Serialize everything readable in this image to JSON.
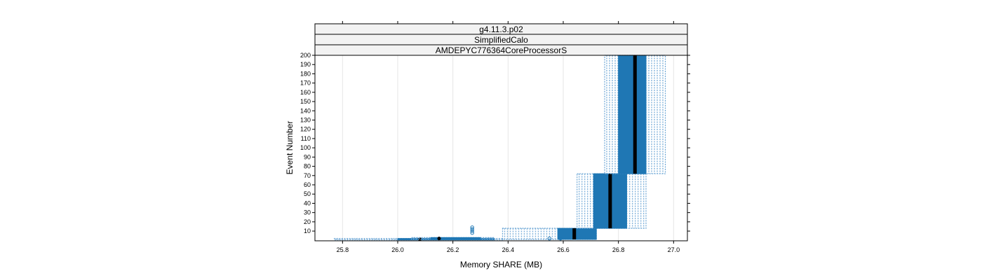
{
  "chart_data": {
    "type": "boxplot",
    "strips": [
      "g4.11.3.p02",
      "SimplifiedCalo",
      "AMDEPYC776364CoreProcessorS"
    ],
    "xlabel": "Memory SHARE (MB)",
    "ylabel": "Event Number",
    "xlim": [
      25.7,
      27.05
    ],
    "ylim": [
      1,
      200
    ],
    "xticks": [
      25.8,
      26.0,
      26.2,
      26.4,
      26.6,
      26.8,
      27.0
    ],
    "xtick_labels": [
      "25.8",
      "26.0",
      "26.2",
      "26.4",
      "26.6",
      "26.8",
      "27.0"
    ],
    "yticks": [
      10,
      20,
      30,
      40,
      50,
      60,
      70,
      80,
      90,
      100,
      110,
      120,
      130,
      140,
      150,
      160,
      170,
      180,
      190,
      200
    ],
    "ytick_labels": [
      "10",
      "20",
      "30",
      "40",
      "50",
      "60",
      "70",
      "80",
      "90",
      "100",
      "110",
      "120",
      "130",
      "140",
      "150",
      "160",
      "170",
      "180",
      "190",
      "200"
    ],
    "grid": "vertical",
    "colors": {
      "box": "#1f77b4",
      "whisker": "#6fa8d6",
      "median": "#000000",
      "panel_border": "#000000",
      "strip_bg": "#f2f2f2"
    },
    "groups": [
      {
        "y_range": [
          1,
          2
        ],
        "whisker": [
          25.77,
          26.38
        ],
        "box": [
          26.0,
          26.35
        ],
        "median": 26.08
      },
      {
        "y_range": [
          1,
          3
        ],
        "whisker": [
          26.05,
          26.35
        ],
        "box": [
          26.12,
          26.3
        ],
        "median": 26.15
      },
      {
        "y_range": [
          1,
          13
        ],
        "whisker": [
          26.38,
          26.72
        ],
        "box": [
          26.58,
          26.72
        ],
        "median": 26.64
      },
      {
        "y_range": [
          13,
          72
        ],
        "whisker": [
          26.65,
          26.9
        ],
        "box": [
          26.71,
          26.83
        ],
        "median": 26.77
      },
      {
        "y_range": [
          72,
          200
        ],
        "whisker": [
          26.75,
          26.97
        ],
        "box": [
          26.8,
          26.9
        ],
        "median": 26.86
      }
    ],
    "outliers": [
      {
        "x": 26.27,
        "y": 8
      },
      {
        "x": 26.27,
        "y": 10
      },
      {
        "x": 26.27,
        "y": 12
      },
      {
        "x": 26.27,
        "y": 14
      },
      {
        "x": 26.55,
        "y": 2
      },
      {
        "x": 26.59,
        "y": 2
      }
    ]
  }
}
